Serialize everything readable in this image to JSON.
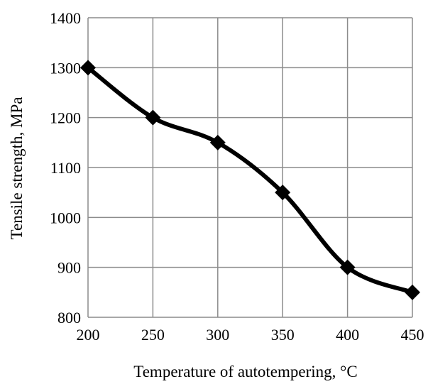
{
  "chart_data": {
    "type": "line",
    "title": "",
    "xlabel": "Temperature of autotempering, °C",
    "ylabel": "Tensile strength, MPa",
    "x": [
      200,
      250,
      300,
      350,
      400,
      450
    ],
    "series": [
      {
        "values": [
          1300,
          1200,
          1150,
          1050,
          900,
          850
        ]
      }
    ],
    "xlim": [
      200,
      450
    ],
    "ylim": [
      800,
      1400
    ],
    "xticks": [
      200,
      250,
      300,
      350,
      400,
      450
    ],
    "yticks": [
      800,
      900,
      1000,
      1100,
      1200,
      1300,
      1400
    ],
    "grid": true,
    "smooth": true,
    "marker": "diamond",
    "line_color": "#000000",
    "grid_color": "#8c8c8c"
  }
}
